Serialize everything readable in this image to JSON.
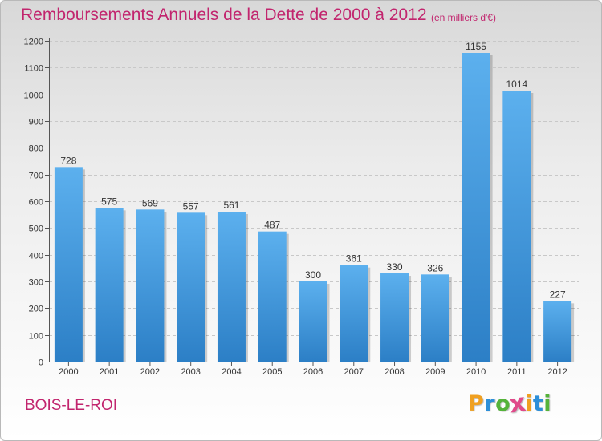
{
  "header": {
    "title": "Remboursements Annuels de la Dette de 2000 à 2012",
    "unit": "(en milliers d'€)"
  },
  "footer": {
    "town": "BOIS-LE-ROI",
    "brand": "Proxiti",
    "brand_colors": [
      "#f0a020",
      "#2d8fd8",
      "#55b33a",
      "#e04a8a",
      "#f0a020",
      "#2d8fd8",
      "#55b33a"
    ]
  },
  "colors": {
    "title": "#c2256e",
    "bar_light": "#5cb0ee",
    "bar_dark": "#2c7fc6",
    "grid": "#c8c8c8"
  },
  "chart_data": {
    "type": "bar",
    "categories": [
      "2000",
      "2001",
      "2002",
      "2003",
      "2004",
      "2005",
      "2006",
      "2007",
      "2008",
      "2009",
      "2010",
      "2011",
      "2012"
    ],
    "values": [
      728,
      575,
      569,
      557,
      561,
      487,
      300,
      361,
      330,
      326,
      1155,
      1014,
      227
    ],
    "ylim": [
      0,
      1200
    ],
    "yticks": [
      0,
      100,
      200,
      300,
      400,
      500,
      600,
      700,
      800,
      900,
      1000,
      1100,
      1200
    ],
    "grid": true,
    "data_labels": true
  }
}
